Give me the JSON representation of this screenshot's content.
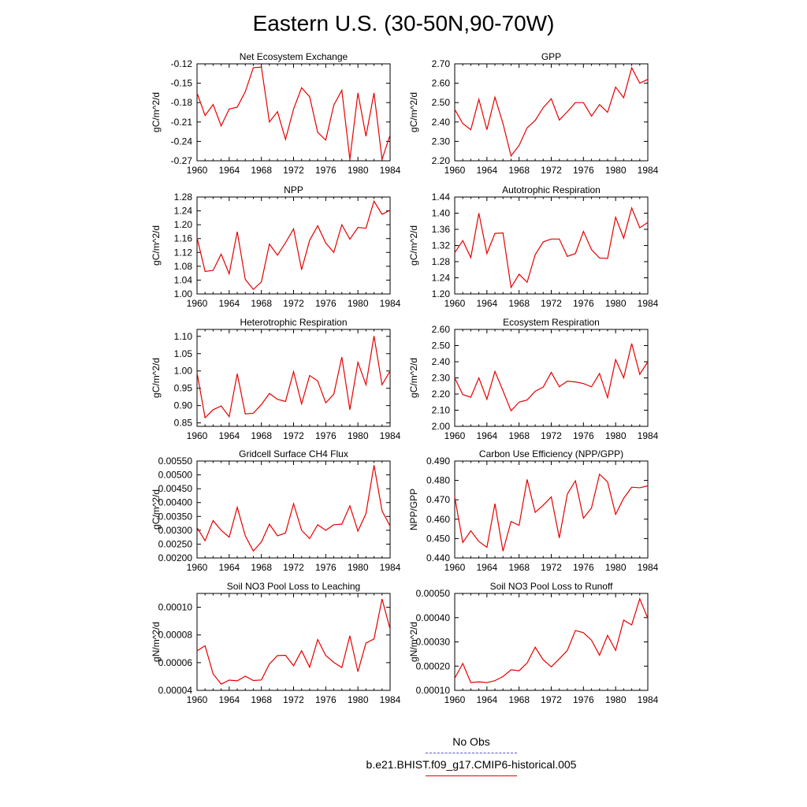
{
  "page": {
    "title": "Eastern U.S. (30-50N,90-70W)"
  },
  "legend": {
    "obs_label": "No Obs",
    "obs_color": "#5555cc",
    "run_label": "b.e21.BHIST.f09_g17.CMIP6-historical.005",
    "run_color": "#e60000"
  },
  "chart_data": [
    {
      "type": "line",
      "title": "Net Ecosystem Exchange",
      "ylabel": "gC/m^2/d",
      "ylim": [
        -0.27,
        -0.12
      ],
      "yticks": [
        "-0.27",
        "-0.24",
        "-0.21",
        "-0.18",
        "-0.15",
        "-0.12"
      ],
      "xlim": [
        1960,
        1984
      ],
      "xticks": [
        "1960",
        "1964",
        "1968",
        "1972",
        "1976",
        "1980",
        "1984"
      ],
      "x": [
        1960,
        1961,
        1962,
        1963,
        1964,
        1965,
        1966,
        1967,
        1968,
        1969,
        1970,
        1971,
        1972,
        1973,
        1974,
        1975,
        1976,
        1977,
        1978,
        1979,
        1980,
        1981,
        1982,
        1983,
        1984
      ],
      "series": [
        {
          "values": [
            -0.165,
            -0.2,
            -0.183,
            -0.216,
            -0.19,
            -0.187,
            -0.163,
            -0.126,
            -0.125,
            -0.21,
            -0.194,
            -0.237,
            -0.19,
            -0.157,
            -0.171,
            -0.226,
            -0.238,
            -0.184,
            -0.161,
            -0.268,
            -0.165,
            -0.232,
            -0.165,
            -0.268,
            -0.23
          ]
        }
      ]
    },
    {
      "type": "line",
      "title": "GPP",
      "ylabel": "gC/m^2/d",
      "ylim": [
        2.2,
        2.7
      ],
      "yticks": [
        "2.20",
        "2.30",
        "2.40",
        "2.50",
        "2.60",
        "2.70"
      ],
      "xlim": [
        1960,
        1984
      ],
      "xticks": [
        "1960",
        "1964",
        "1968",
        "1972",
        "1976",
        "1980",
        "1984"
      ],
      "x": [
        1960,
        1961,
        1962,
        1963,
        1964,
        1965,
        1966,
        1967,
        1968,
        1969,
        1970,
        1971,
        1972,
        1973,
        1974,
        1975,
        1976,
        1977,
        1978,
        1979,
        1980,
        1981,
        1982,
        1983,
        1984
      ],
      "series": [
        {
          "values": [
            2.465,
            2.392,
            2.36,
            2.517,
            2.36,
            2.528,
            2.392,
            2.225,
            2.279,
            2.37,
            2.408,
            2.474,
            2.52,
            2.41,
            2.453,
            2.5,
            2.5,
            2.43,
            2.49,
            2.45,
            2.58,
            2.525,
            2.68,
            2.6,
            2.62
          ]
        }
      ]
    },
    {
      "type": "line",
      "title": "NPP",
      "ylabel": "gC/m^2/d",
      "ylim": [
        1.0,
        1.28
      ],
      "yticks": [
        "1.00",
        "1.04",
        "1.08",
        "1.12",
        "1.16",
        "1.20",
        "1.24",
        "1.28"
      ],
      "xlim": [
        1960,
        1984
      ],
      "xticks": [
        "1960",
        "1964",
        "1968",
        "1972",
        "1976",
        "1980",
        "1984"
      ],
      "x": [
        1960,
        1961,
        1962,
        1963,
        1964,
        1965,
        1966,
        1967,
        1968,
        1969,
        1970,
        1971,
        1972,
        1973,
        1974,
        1975,
        1976,
        1977,
        1978,
        1979,
        1980,
        1981,
        1982,
        1983,
        1984
      ],
      "series": [
        {
          "values": [
            1.163,
            1.065,
            1.068,
            1.115,
            1.058,
            1.18,
            1.042,
            1.013,
            1.035,
            1.144,
            1.112,
            1.148,
            1.188,
            1.07,
            1.155,
            1.197,
            1.147,
            1.12,
            1.2,
            1.158,
            1.192,
            1.19,
            1.268,
            1.23,
            1.242
          ]
        }
      ]
    },
    {
      "type": "line",
      "title": "Autotrophic Respiration",
      "ylabel": "gC/m^2/d",
      "ylim": [
        1.2,
        1.44
      ],
      "yticks": [
        "1.20",
        "1.24",
        "1.28",
        "1.32",
        "1.36",
        "1.40",
        "1.44"
      ],
      "xlim": [
        1960,
        1984
      ],
      "xticks": [
        "1960",
        "1964",
        "1968",
        "1972",
        "1976",
        "1980",
        "1984"
      ],
      "x": [
        1960,
        1961,
        1962,
        1963,
        1964,
        1965,
        1966,
        1967,
        1968,
        1969,
        1970,
        1971,
        1972,
        1973,
        1974,
        1975,
        1976,
        1977,
        1978,
        1979,
        1980,
        1981,
        1982,
        1983,
        1984
      ],
      "series": [
        {
          "values": [
            1.302,
            1.332,
            1.29,
            1.4,
            1.3,
            1.35,
            1.351,
            1.216,
            1.249,
            1.229,
            1.297,
            1.329,
            1.336,
            1.336,
            1.293,
            1.3,
            1.355,
            1.31,
            1.289,
            1.288,
            1.39,
            1.338,
            1.413,
            1.364,
            1.377
          ]
        }
      ]
    },
    {
      "type": "line",
      "title": "Heterotrophic Respiration",
      "ylabel": "gC/m^2/d",
      "ylim": [
        0.84,
        1.12
      ],
      "yticks": [
        "0.85",
        "0.90",
        "0.95",
        "1.00",
        "1.05",
        "1.10"
      ],
      "xlim": [
        1960,
        1984
      ],
      "xticks": [
        "1960",
        "1964",
        "1968",
        "1972",
        "1976",
        "1980",
        "1984"
      ],
      "x": [
        1960,
        1961,
        1962,
        1963,
        1964,
        1965,
        1966,
        1967,
        1968,
        1969,
        1970,
        1971,
        1972,
        1973,
        1974,
        1975,
        1976,
        1977,
        1978,
        1979,
        1980,
        1981,
        1982,
        1983,
        1984
      ],
      "series": [
        {
          "values": [
            0.995,
            0.865,
            0.888,
            0.899,
            0.868,
            0.992,
            0.876,
            0.878,
            0.903,
            0.935,
            0.918,
            0.912,
            0.998,
            0.905,
            0.987,
            0.971,
            0.908,
            0.933,
            1.04,
            0.888,
            1.025,
            0.96,
            1.101,
            0.96,
            1.0
          ]
        }
      ]
    },
    {
      "type": "line",
      "title": "Ecosystem Respiration",
      "ylabel": "gC/m^2/d",
      "ylim": [
        2.0,
        2.6
      ],
      "yticks": [
        "2.00",
        "2.10",
        "2.20",
        "2.30",
        "2.40",
        "2.50",
        "2.60"
      ],
      "xlim": [
        1960,
        1984
      ],
      "xticks": [
        "1960",
        "1964",
        "1968",
        "1972",
        "1976",
        "1980",
        "1984"
      ],
      "x": [
        1960,
        1961,
        1962,
        1963,
        1964,
        1965,
        1966,
        1967,
        1968,
        1969,
        1970,
        1971,
        1972,
        1973,
        1974,
        1975,
        1976,
        1977,
        1978,
        1979,
        1980,
        1981,
        1982,
        1983,
        1984
      ],
      "series": [
        {
          "values": [
            2.3,
            2.197,
            2.18,
            2.3,
            2.168,
            2.34,
            2.22,
            2.096,
            2.15,
            2.163,
            2.217,
            2.243,
            2.334,
            2.245,
            2.28,
            2.275,
            2.265,
            2.245,
            2.327,
            2.178,
            2.413,
            2.3,
            2.513,
            2.322,
            2.4
          ]
        }
      ]
    },
    {
      "type": "line",
      "title": "Gridcell Surface CH4 Flux",
      "ylabel": "gC/m^2/d",
      "ylim": [
        0.002,
        0.0055
      ],
      "yticks": [
        "0.00200",
        "0.00250",
        "0.00300",
        "0.00350",
        "0.00400",
        "0.00450",
        "0.00500",
        "0.00550"
      ],
      "xlim": [
        1960,
        1984
      ],
      "xticks": [
        "1960",
        "1964",
        "1968",
        "1972",
        "1976",
        "1980",
        "1984"
      ],
      "x": [
        1960,
        1961,
        1962,
        1963,
        1964,
        1965,
        1966,
        1967,
        1968,
        1969,
        1970,
        1971,
        1972,
        1973,
        1974,
        1975,
        1976,
        1977,
        1978,
        1979,
        1980,
        1981,
        1982,
        1983,
        1984
      ],
      "series": [
        {
          "values": [
            0.0031,
            0.00262,
            0.00335,
            0.003,
            0.00275,
            0.00383,
            0.0028,
            0.00225,
            0.00258,
            0.00322,
            0.0028,
            0.0029,
            0.00396,
            0.003,
            0.0027,
            0.0032,
            0.003,
            0.0032,
            0.00322,
            0.00388,
            0.00297,
            0.0036,
            0.00535,
            0.0037,
            0.00315
          ]
        }
      ]
    },
    {
      "type": "line",
      "title": "Carbon Use Efficiency (NPP/GPP)",
      "ylabel": "NPP/GPP",
      "ylim": [
        0.44,
        0.49
      ],
      "yticks": [
        "0.440",
        "0.450",
        "0.460",
        "0.470",
        "0.480",
        "0.490"
      ],
      "xlim": [
        1960,
        1984
      ],
      "xticks": [
        "1960",
        "1964",
        "1968",
        "1972",
        "1976",
        "1980",
        "1984"
      ],
      "x": [
        1960,
        1961,
        1962,
        1963,
        1964,
        1965,
        1966,
        1967,
        1968,
        1969,
        1970,
        1971,
        1972,
        1973,
        1974,
        1975,
        1976,
        1977,
        1978,
        1979,
        1980,
        1981,
        1982,
        1983,
        1984
      ],
      "series": [
        {
          "values": [
            0.4715,
            0.448,
            0.454,
            0.4485,
            0.4455,
            0.468,
            0.4435,
            0.4588,
            0.4568,
            0.4805,
            0.4635,
            0.4672,
            0.4715,
            0.4503,
            0.473,
            0.4798,
            0.4605,
            0.4658,
            0.4832,
            0.4792,
            0.4625,
            0.4708,
            0.4765,
            0.4762,
            0.4772
          ]
        }
      ]
    },
    {
      "type": "line",
      "title": "Soil NO3 Pool Loss to Leaching",
      "ylabel": "gN/m^2/d",
      "ylim": [
        4e-05,
        0.00011
      ],
      "yticks": [
        "0.00004",
        "0.00006",
        "0.00008",
        "0.00010"
      ],
      "xlim": [
        1960,
        1984
      ],
      "xticks": [
        "1960",
        "1964",
        "1968",
        "1972",
        "1976",
        "1980",
        "1984"
      ],
      "x": [
        1960,
        1961,
        1962,
        1963,
        1964,
        1965,
        1966,
        1967,
        1968,
        1969,
        1970,
        1971,
        1972,
        1973,
        1974,
        1975,
        1976,
        1977,
        1978,
        1979,
        1980,
        1981,
        1982,
        1983,
        1984
      ],
      "series": [
        {
          "values": [
            6.85e-05,
            7.22e-05,
            5.19e-05,
            4.45e-05,
            4.74e-05,
            4.69e-05,
            5.02e-05,
            4.71e-05,
            4.75e-05,
            5.91e-05,
            6.51e-05,
            6.53e-05,
            5.78e-05,
            6.86e-05,
            5.67e-05,
            7.67e-05,
            6.52e-05,
            6.02e-05,
            5.65e-05,
            7.94e-05,
            5.35e-05,
            7.42e-05,
            7.71e-05,
            0.000106,
            8.42e-05
          ]
        }
      ]
    },
    {
      "type": "line",
      "title": "Soil NO3 Pool Loss to Runoff",
      "ylabel": "gN/m^2/d",
      "ylim": [
        0.0001,
        0.0005
      ],
      "yticks": [
        "0.00010",
        "0.00020",
        "0.00030",
        "0.00040",
        "0.00050"
      ],
      "xlim": [
        1960,
        1984
      ],
      "xticks": [
        "1960",
        "1964",
        "1968",
        "1972",
        "1976",
        "1980",
        "1984"
      ],
      "x": [
        1960,
        1961,
        1962,
        1963,
        1964,
        1965,
        1966,
        1967,
        1968,
        1969,
        1970,
        1971,
        1972,
        1973,
        1974,
        1975,
        1976,
        1977,
        1978,
        1979,
        1980,
        1981,
        1982,
        1983,
        1984
      ],
      "series": [
        {
          "values": [
            0.00015,
            0.000211,
            0.000132,
            0.000135,
            0.000132,
            0.00014,
            0.000157,
            0.000185,
            0.000181,
            0.000213,
            0.000278,
            0.000226,
            0.000197,
            0.00023,
            0.000265,
            0.000347,
            0.000338,
            0.000307,
            0.000245,
            0.000327,
            0.000265,
            0.00039,
            0.00037,
            0.000478,
            0.000397
          ]
        }
      ]
    }
  ]
}
